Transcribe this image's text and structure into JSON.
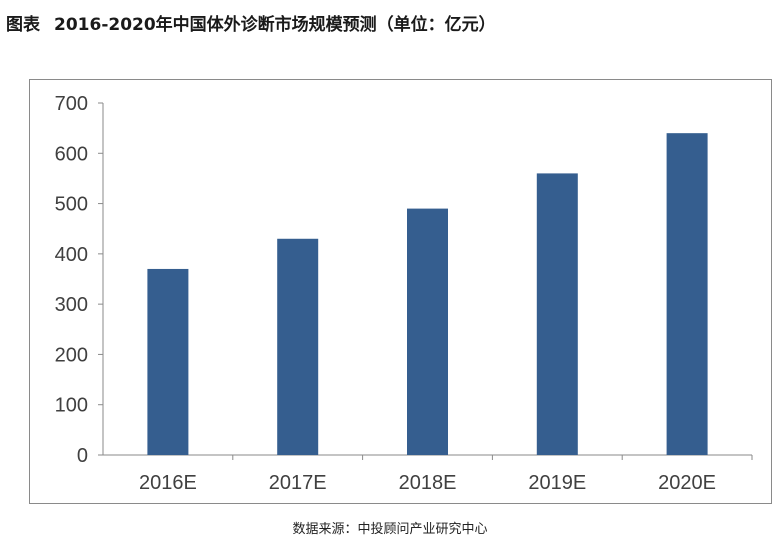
{
  "figure": {
    "label": "图表",
    "title": "2016-2020年中国体外诊断市场规模预测（单位：亿元）",
    "source": "数据来源：中投顾问产业研究中心"
  },
  "chart_data": {
    "type": "bar",
    "title": "",
    "xlabel": "",
    "ylabel": "",
    "categories": [
      "2016E",
      "2017E",
      "2018E",
      "2019E",
      "2020E"
    ],
    "values": [
      370,
      430,
      490,
      560,
      640
    ],
    "ylim": [
      0,
      700
    ],
    "yticks": [
      0,
      100,
      200,
      300,
      400,
      500,
      600,
      700
    ],
    "grid": false,
    "legend": "none",
    "colors": {
      "bar": "#355E8F",
      "axis": "#8a8a8a",
      "tick_text": "#404040"
    }
  }
}
